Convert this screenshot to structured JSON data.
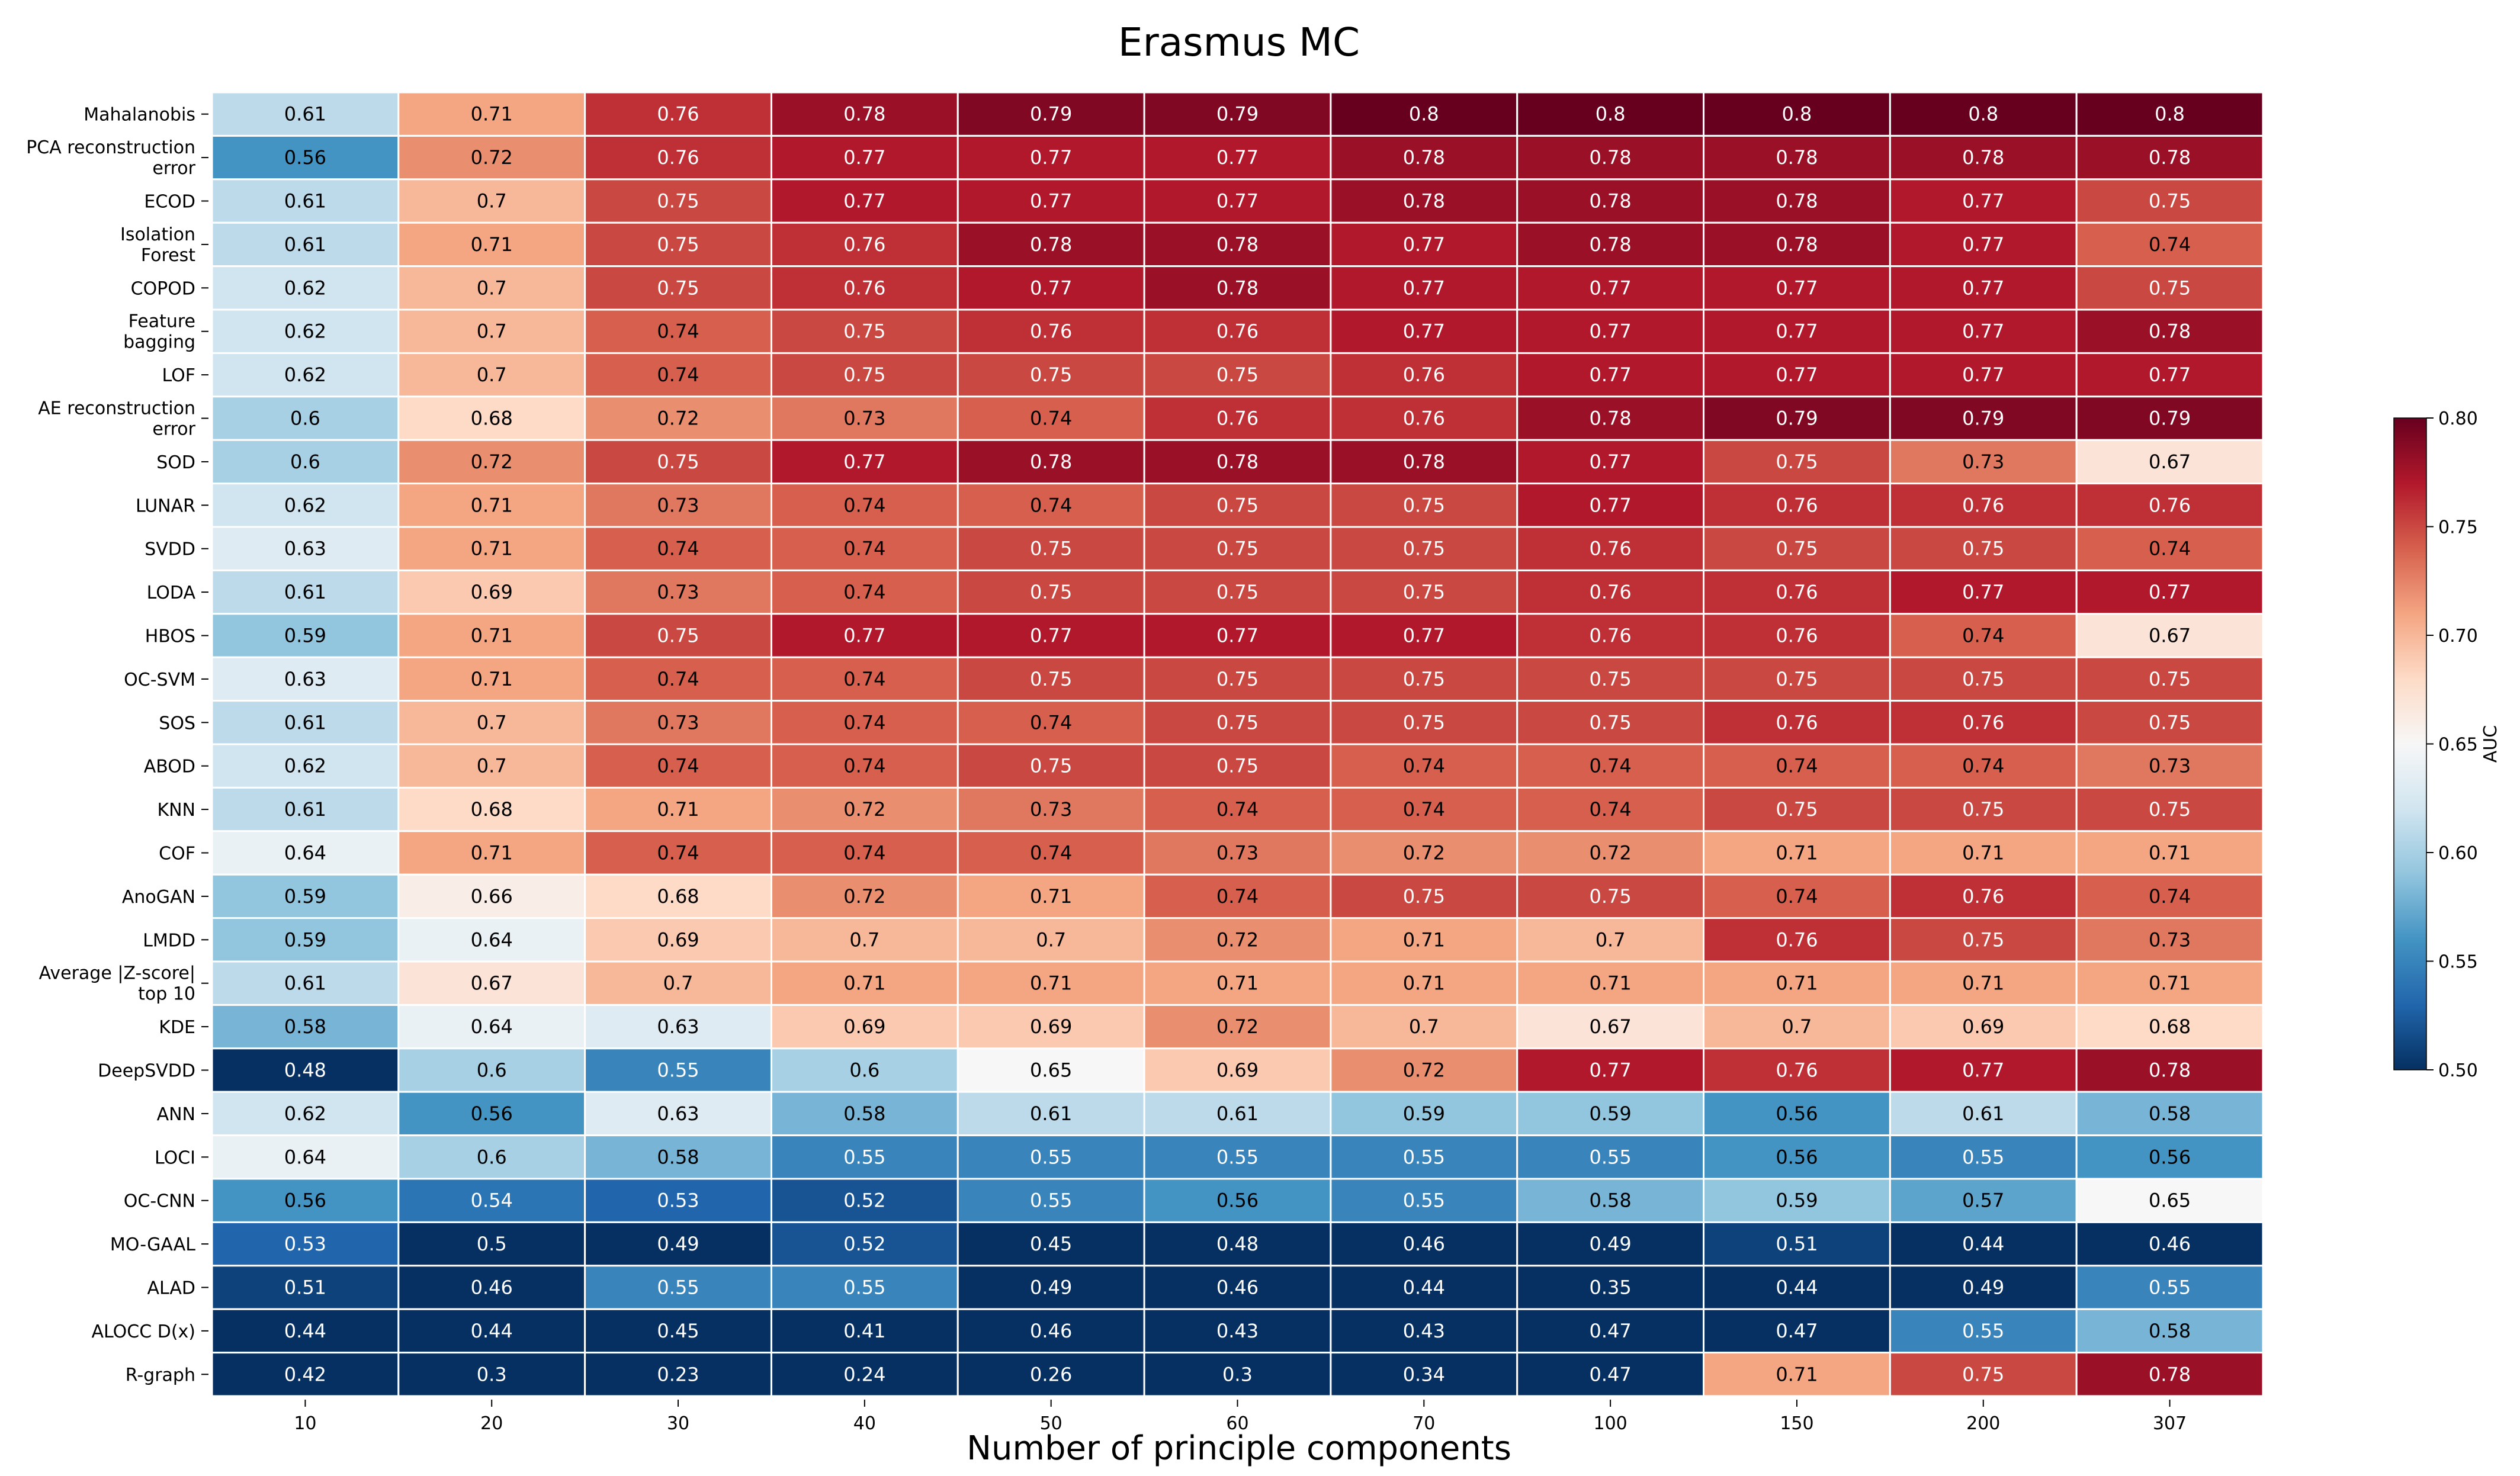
{
  "chart_data": {
    "type": "heatmap",
    "title": "Erasmus MC",
    "xlabel": "Number of principle components",
    "ylabel": "",
    "colorbar_label": "AUC",
    "colorbar_range": [
      0.5,
      0.8
    ],
    "colorbar_ticks": [
      "0.50",
      "0.55",
      "0.60",
      "0.65",
      "0.70",
      "0.75",
      "0.80"
    ],
    "colormap": "RdBu_r",
    "x_categories": [
      "10",
      "20",
      "30",
      "40",
      "50",
      "60",
      "70",
      "100",
      "150",
      "200",
      "307"
    ],
    "rows": [
      {
        "label": [
          "Mahalanobis"
        ],
        "values": [
          0.61,
          0.71,
          0.76,
          0.78,
          0.79,
          0.79,
          0.8,
          0.8,
          0.8,
          0.8,
          0.8
        ]
      },
      {
        "label": [
          "PCA reconstruction",
          "error"
        ],
        "values": [
          0.56,
          0.72,
          0.76,
          0.77,
          0.77,
          0.77,
          0.78,
          0.78,
          0.78,
          0.78,
          0.78
        ]
      },
      {
        "label": [
          "ECOD"
        ],
        "values": [
          0.61,
          0.7,
          0.75,
          0.77,
          0.77,
          0.77,
          0.78,
          0.78,
          0.78,
          0.77,
          0.75
        ]
      },
      {
        "label": [
          "Isolation",
          "Forest"
        ],
        "values": [
          0.61,
          0.71,
          0.75,
          0.76,
          0.78,
          0.78,
          0.77,
          0.78,
          0.78,
          0.77,
          0.74
        ]
      },
      {
        "label": [
          "COPOD"
        ],
        "values": [
          0.62,
          0.7,
          0.75,
          0.76,
          0.77,
          0.78,
          0.77,
          0.77,
          0.77,
          0.77,
          0.75
        ]
      },
      {
        "label": [
          "Feature",
          "bagging"
        ],
        "values": [
          0.62,
          0.7,
          0.74,
          0.75,
          0.76,
          0.76,
          0.77,
          0.77,
          0.77,
          0.77,
          0.78
        ]
      },
      {
        "label": [
          "LOF"
        ],
        "values": [
          0.62,
          0.7,
          0.74,
          0.75,
          0.75,
          0.75,
          0.76,
          0.77,
          0.77,
          0.77,
          0.77
        ]
      },
      {
        "label": [
          "AE reconstruction",
          "error"
        ],
        "values": [
          0.6,
          0.68,
          0.72,
          0.73,
          0.74,
          0.76,
          0.76,
          0.78,
          0.79,
          0.79,
          0.79
        ]
      },
      {
        "label": [
          "SOD"
        ],
        "values": [
          0.6,
          0.72,
          0.75,
          0.77,
          0.78,
          0.78,
          0.78,
          0.77,
          0.75,
          0.73,
          0.67
        ]
      },
      {
        "label": [
          "LUNAR"
        ],
        "values": [
          0.62,
          0.71,
          0.73,
          0.74,
          0.74,
          0.75,
          0.75,
          0.77,
          0.76,
          0.76,
          0.76
        ]
      },
      {
        "label": [
          "SVDD"
        ],
        "values": [
          0.63,
          0.71,
          0.74,
          0.74,
          0.75,
          0.75,
          0.75,
          0.76,
          0.75,
          0.75,
          0.74
        ]
      },
      {
        "label": [
          "LODA"
        ],
        "values": [
          0.61,
          0.69,
          0.73,
          0.74,
          0.75,
          0.75,
          0.75,
          0.76,
          0.76,
          0.77,
          0.77
        ]
      },
      {
        "label": [
          "HBOS"
        ],
        "values": [
          0.59,
          0.71,
          0.75,
          0.77,
          0.77,
          0.77,
          0.77,
          0.76,
          0.76,
          0.74,
          0.67
        ]
      },
      {
        "label": [
          "OC-SVM"
        ],
        "values": [
          0.63,
          0.71,
          0.74,
          0.74,
          0.75,
          0.75,
          0.75,
          0.75,
          0.75,
          0.75,
          0.75
        ]
      },
      {
        "label": [
          "SOS"
        ],
        "values": [
          0.61,
          0.7,
          0.73,
          0.74,
          0.74,
          0.75,
          0.75,
          0.75,
          0.76,
          0.76,
          0.75
        ]
      },
      {
        "label": [
          "ABOD"
        ],
        "values": [
          0.62,
          0.7,
          0.74,
          0.74,
          0.75,
          0.75,
          0.74,
          0.74,
          0.74,
          0.74,
          0.73
        ]
      },
      {
        "label": [
          "KNN"
        ],
        "values": [
          0.61,
          0.68,
          0.71,
          0.72,
          0.73,
          0.74,
          0.74,
          0.74,
          0.75,
          0.75,
          0.75
        ]
      },
      {
        "label": [
          "COF"
        ],
        "values": [
          0.64,
          0.71,
          0.74,
          0.74,
          0.74,
          0.73,
          0.72,
          0.72,
          0.71,
          0.71,
          0.71
        ]
      },
      {
        "label": [
          "AnoGAN"
        ],
        "values": [
          0.59,
          0.66,
          0.68,
          0.72,
          0.71,
          0.74,
          0.75,
          0.75,
          0.74,
          0.76,
          0.74
        ]
      },
      {
        "label": [
          "LMDD"
        ],
        "values": [
          0.59,
          0.64,
          0.69,
          0.7,
          0.7,
          0.72,
          0.71,
          0.7,
          0.76,
          0.75,
          0.73
        ]
      },
      {
        "label": [
          "Average |Z-score|",
          "top 10"
        ],
        "values": [
          0.61,
          0.67,
          0.7,
          0.71,
          0.71,
          0.71,
          0.71,
          0.71,
          0.71,
          0.71,
          0.71
        ]
      },
      {
        "label": [
          "KDE"
        ],
        "values": [
          0.58,
          0.64,
          0.63,
          0.69,
          0.69,
          0.72,
          0.7,
          0.67,
          0.7,
          0.69,
          0.68
        ]
      },
      {
        "label": [
          "DeepSVDD"
        ],
        "values": [
          0.48,
          0.6,
          0.55,
          0.6,
          0.65,
          0.69,
          0.72,
          0.77,
          0.76,
          0.77,
          0.78
        ]
      },
      {
        "label": [
          "ANN"
        ],
        "values": [
          0.62,
          0.56,
          0.63,
          0.58,
          0.61,
          0.61,
          0.59,
          0.59,
          0.56,
          0.61,
          0.58
        ]
      },
      {
        "label": [
          "LOCI"
        ],
        "values": [
          0.64,
          0.6,
          0.58,
          0.55,
          0.55,
          0.55,
          0.55,
          0.55,
          0.56,
          0.55,
          0.56
        ]
      },
      {
        "label": [
          "OC-CNN"
        ],
        "values": [
          0.56,
          0.54,
          0.53,
          0.52,
          0.55,
          0.56,
          0.55,
          0.58,
          0.59,
          0.57,
          0.65
        ]
      },
      {
        "label": [
          "MO-GAAL"
        ],
        "values": [
          0.53,
          0.5,
          0.49,
          0.52,
          0.45,
          0.48,
          0.46,
          0.49,
          0.51,
          0.44,
          0.46
        ]
      },
      {
        "label": [
          "ALAD"
        ],
        "values": [
          0.51,
          0.46,
          0.55,
          0.55,
          0.49,
          0.46,
          0.44,
          0.35,
          0.44,
          0.49,
          0.55
        ]
      },
      {
        "label": [
          "ALOCC D(x)"
        ],
        "values": [
          0.44,
          0.44,
          0.45,
          0.41,
          0.46,
          0.43,
          0.43,
          0.47,
          0.47,
          0.55,
          0.58
        ]
      },
      {
        "label": [
          "R-graph"
        ],
        "values": [
          0.42,
          0.3,
          0.23,
          0.24,
          0.26,
          0.3,
          0.34,
          0.47,
          0.71,
          0.75,
          0.78
        ]
      }
    ]
  }
}
